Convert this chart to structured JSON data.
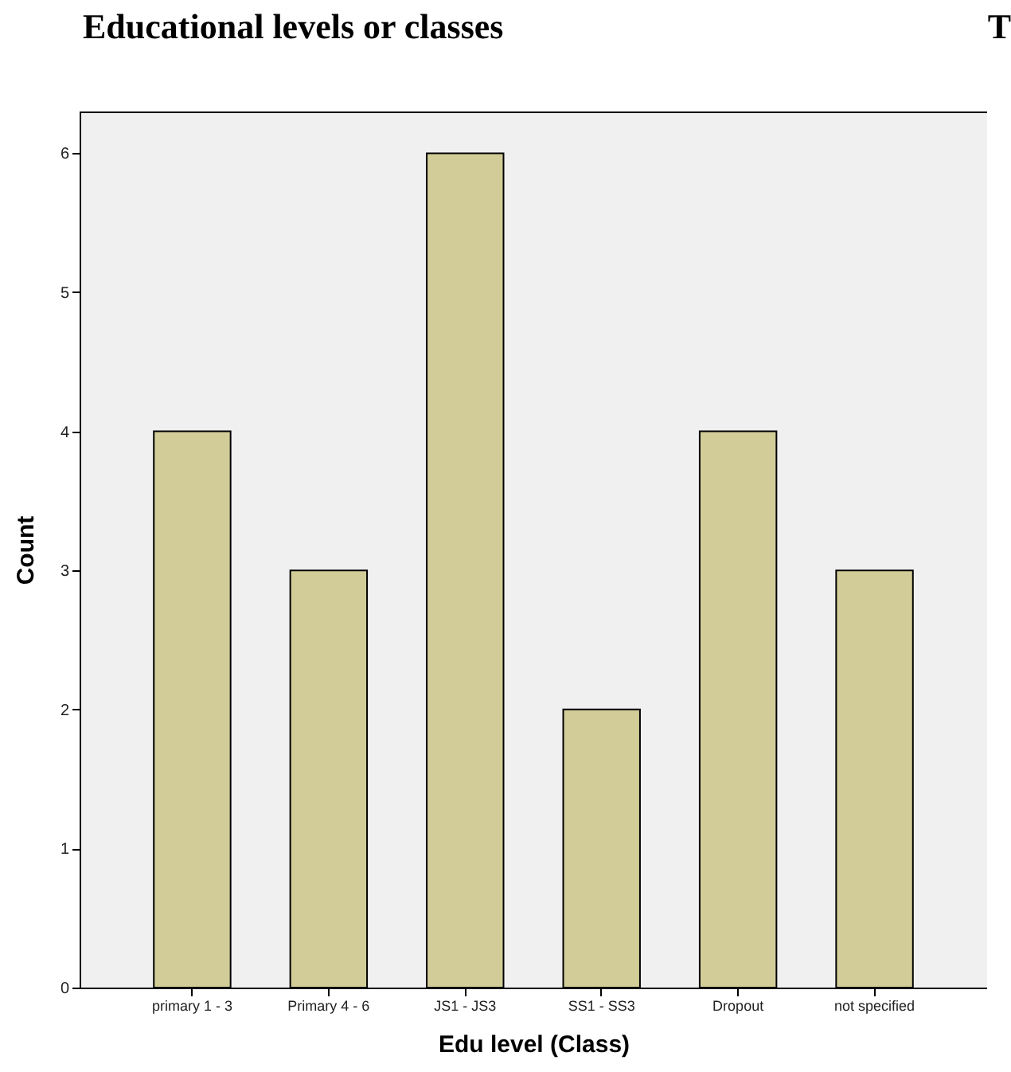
{
  "chart_data": {
    "type": "bar",
    "title": "Educational levels or classes",
    "annotations": [
      "T"
    ],
    "categories": [
      "primary 1 - 3",
      "Primary 4 - 6",
      "JS1 - JS3",
      "SS1 - SS3",
      "Dropout",
      "not specified"
    ],
    "values": [
      4,
      3,
      6,
      2,
      4,
      3
    ],
    "color": "#d2cd98",
    "xlabel": "Edu level (Class)",
    "ylabel": "Count",
    "ylim": [
      0,
      6.3
    ],
    "yticks": [
      0,
      1,
      2,
      3,
      4,
      5,
      6
    ],
    "grid": false
  }
}
